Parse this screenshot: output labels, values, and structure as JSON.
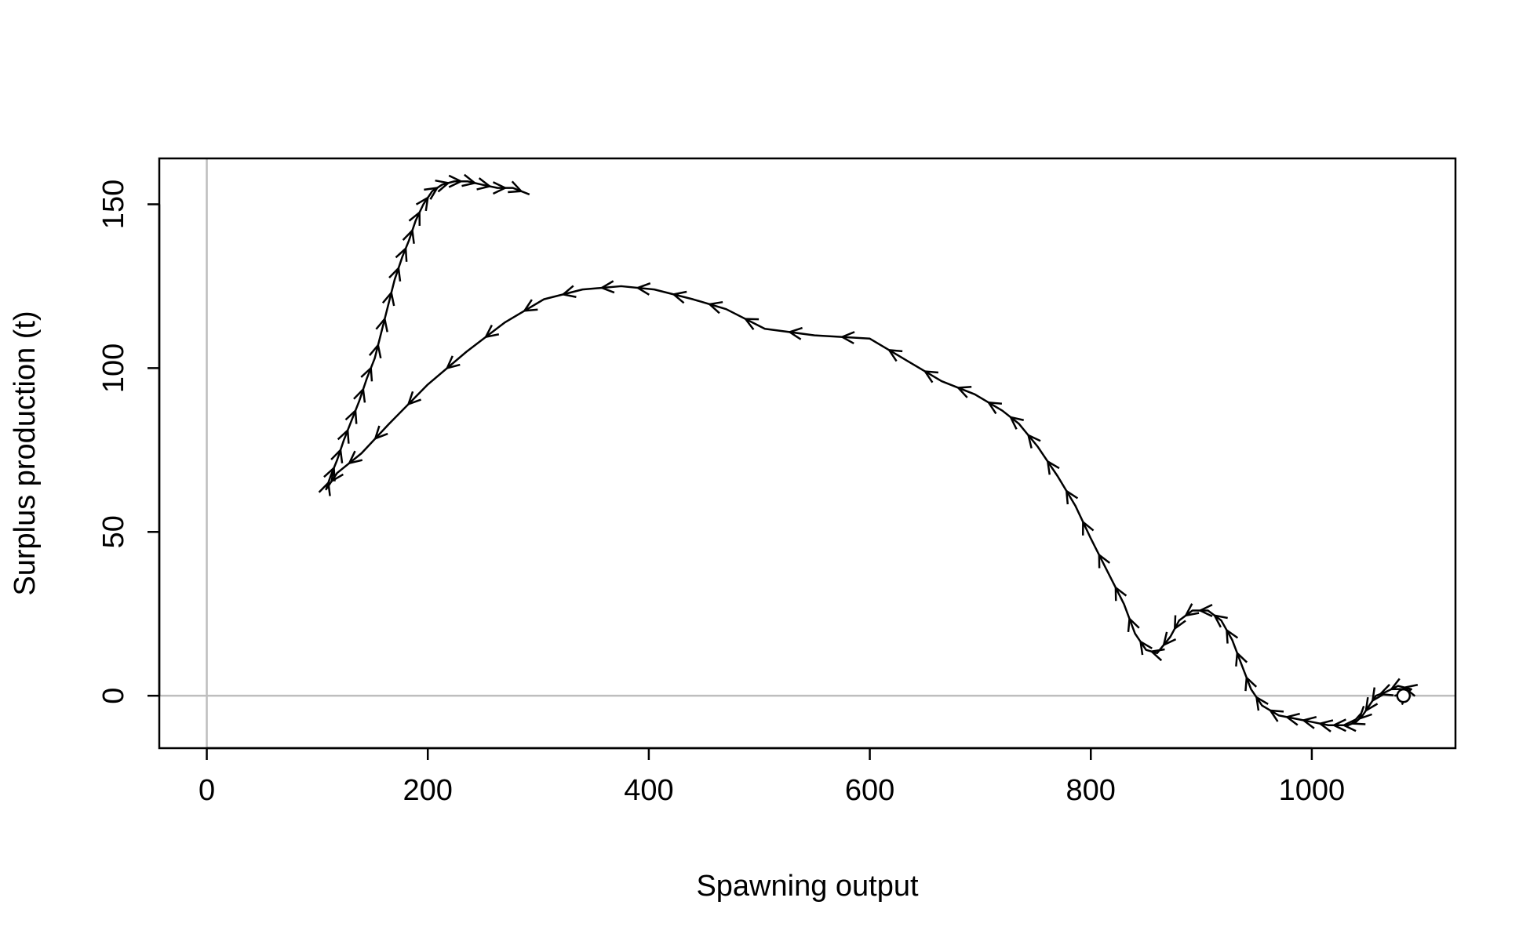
{
  "chart_data": {
    "type": "line",
    "title": "",
    "xlabel": "Spawning output",
    "ylabel": "Surplus production (t)",
    "xlim": [
      -43,
      1130
    ],
    "ylim": [
      -16,
      164
    ],
    "xticks": [
      0,
      200,
      400,
      600,
      800,
      1000
    ],
    "yticks": [
      0,
      50,
      100,
      150
    ],
    "xtick_labels": [
      "0",
      "200",
      "400",
      "600",
      "800",
      "1000"
    ],
    "ytick_labels": [
      "0",
      "50",
      "100",
      "150"
    ],
    "reference_lines": {
      "x": 0,
      "y": 0,
      "color": "#bebebe"
    },
    "arrows": true,
    "end_marker": "open-circle",
    "series": [
      {
        "color": "#000000",
        "x": [
          1083,
          1090,
          1078,
          1066,
          1058,
          1052,
          1046,
          1040,
          1033,
          1025,
          1015,
          1000,
          985,
          970,
          955,
          945,
          937,
          928,
          918,
          906,
          892,
          880,
          872,
          860,
          850,
          840,
          830,
          815,
          800,
          786,
          770,
          752,
          735,
          720,
          695,
          665,
          635,
          600,
          550,
          505,
          470,
          440,
          405,
          375,
          340,
          305,
          270,
          235,
          200,
          165,
          140,
          118,
          108,
          112,
          118,
          124,
          131,
          138,
          145,
          152,
          158,
          164,
          170,
          177,
          183,
          189,
          196,
          204,
          213,
          224,
          236,
          249,
          263,
          277,
          292
        ],
        "y": [
          0,
          2,
          3,
          1,
          0,
          -3,
          -6,
          -8,
          -9,
          -9,
          -9,
          -8,
          -7,
          -6,
          -3,
          2,
          9,
          17,
          23,
          26,
          26,
          23,
          18,
          13,
          14,
          19,
          28,
          38,
          48,
          58,
          67,
          76,
          83,
          87,
          92,
          96,
          102,
          109,
          110,
          112,
          118,
          121,
          124,
          125,
          124,
          121,
          114,
          105,
          95,
          83,
          74,
          68,
          63,
          67,
          72,
          78,
          84,
          90,
          97,
          103,
          111,
          119,
          127,
          134,
          139,
          145,
          150,
          154,
          156,
          157,
          157,
          156,
          155,
          155,
          153
        ]
      }
    ]
  }
}
